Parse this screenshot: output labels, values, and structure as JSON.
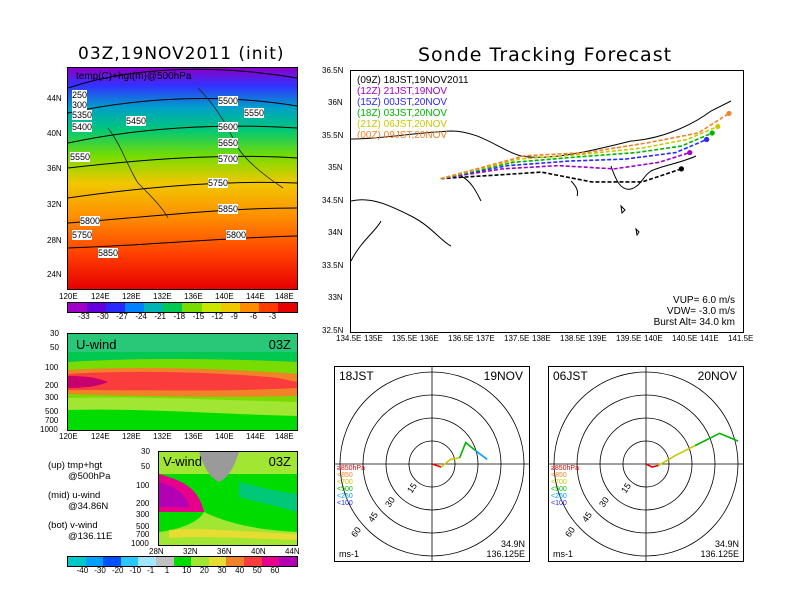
{
  "left": {
    "title": "03Z,19NOV2011 (init)",
    "map_label": "temp(C)+hgt(m)@500hPa",
    "contours": [
      "5500",
      "5450",
      "5550",
      "5600",
      "5650",
      "5700",
      "5750",
      "5800",
      "5850",
      "5750",
      "5800",
      "5850",
      "5350",
      "5400",
      "5550",
      "5300",
      "250",
      "300",
      "5250"
    ],
    "lat_ticks": [
      "44N",
      "40N",
      "36N",
      "32N",
      "28N",
      "24N"
    ],
    "lon_ticks": [
      "120E",
      "124E",
      "128E",
      "132E",
      "136E",
      "140E",
      "144E",
      "148E"
    ],
    "temp_cbar_labels": [
      "-33",
      "-30",
      "-27",
      "-24",
      "-21",
      "-18",
      "-15",
      "-12",
      "-9",
      "-6",
      "-3"
    ],
    "temp_cbar_colors": [
      "#a000c8",
      "#6400dc",
      "#2828ff",
      "#0082ff",
      "#00b4b4",
      "#00c850",
      "#78dc00",
      "#c8e600",
      "#f0c800",
      "#ff8c00",
      "#ff3c00",
      "#e60000"
    ],
    "uwind_label": "U-wind",
    "uwind_time": "03Z",
    "uwind_pticks": [
      "30",
      "50",
      "100",
      "200",
      "300",
      "500",
      "700",
      "1000"
    ],
    "uwind_lon_ticks": [
      "120E",
      "124E",
      "128E",
      "132E",
      "136E",
      "140E",
      "144E",
      "148E"
    ],
    "vwind_label": "V-wind",
    "vwind_time": "03Z",
    "vwind_pticks": [
      "30",
      "50",
      "100",
      "200",
      "300",
      "500",
      "700",
      "1000"
    ],
    "vwind_lat_ticks": [
      "28N",
      "32N",
      "36N",
      "40N",
      "44N"
    ],
    "wind_cbar_labels": [
      "-40",
      "-30",
      "-20",
      "-10",
      "-1",
      "1",
      "10",
      "20",
      "30",
      "40",
      "50",
      "60"
    ],
    "wind_cbar_colors": [
      "#00c8c8",
      "#00a0ff",
      "#0050ff",
      "#28c8ff",
      "#a0e6ff",
      "#c0c0c0",
      "#00dc00",
      "#a0e632",
      "#e6dc32",
      "#f08228",
      "#fa3c3c",
      "#e6008c",
      "#b400b4"
    ],
    "legend_lines": [
      {
        "a": "(up) tmp+hgt",
        "b": "@500hPa"
      },
      {
        "a": "(mid) u-wind",
        "b": "@34.86N"
      },
      {
        "a": "(bot) v-wind",
        "b": "@136.11E"
      }
    ]
  },
  "right": {
    "title": "Sonde Tracking Forecast",
    "lat_ticks": [
      "36.5N",
      "36N",
      "35.5N",
      "35N",
      "34.5N",
      "34N",
      "33.5N",
      "33N",
      "32.5N"
    ],
    "lon_ticks": [
      "134.5E",
      "135E",
      "135.5E",
      "136E",
      "136.5E",
      "137E",
      "137.5E",
      "138E",
      "138.5E",
      "139E",
      "139.5E",
      "140E",
      "140.5E",
      "141E",
      "141.5E"
    ],
    "legend": [
      {
        "label": "(09Z)  18JST,19NOV2011",
        "color": "#000000"
      },
      {
        "label": "(12Z)  21JST,19NOV",
        "color": "#a000c8"
      },
      {
        "label": "(15Z)  00JST,20NOV",
        "color": "#2828ff"
      },
      {
        "label": "(18Z)  03JST,20NOV",
        "color": "#00b400"
      },
      {
        "label": "(21Z)  06JST,20NOV",
        "color": "#c8c800"
      },
      {
        "label": "(00Z)  09JST,20NOV",
        "color": "#f08228"
      }
    ],
    "params": [
      "VUP=  6.0 m/s",
      "VDW=  -3.0 m/s",
      "Burst Alt=  34.0 km"
    ]
  },
  "hodo_left": {
    "time": "18JST",
    "date": "19NOV",
    "rings": [
      "15",
      "30",
      "45",
      "60"
    ],
    "levels": [
      {
        "label": "≥850hPa",
        "color": "#e60000"
      },
      {
        "label": "<850",
        "color": "#f08228"
      },
      {
        "label": "<700",
        "color": "#c8c800"
      },
      {
        "label": "<500",
        "color": "#00b400"
      },
      {
        "label": "<250",
        "color": "#00a0ff"
      },
      {
        "label": "<100",
        "color": "#2828ff"
      }
    ],
    "unit": "ms-1",
    "loc1": "34.9N",
    "loc2": "136.125E"
  },
  "hodo_right": {
    "time": "06JST",
    "date": "20NOV",
    "rings": [
      "15",
      "30",
      "45",
      "60"
    ],
    "levels": [
      {
        "label": "≥850hPa",
        "color": "#e60000"
      },
      {
        "label": "<850",
        "color": "#f08228"
      },
      {
        "label": "<700",
        "color": "#c8c800"
      },
      {
        "label": "<500",
        "color": "#00b400"
      },
      {
        "label": "<250",
        "color": "#00a0ff"
      },
      {
        "label": "<100",
        "color": "#2828ff"
      }
    ],
    "unit": "ms-1",
    "loc1": "34.9N",
    "loc2": "136.125E"
  },
  "chart_data": [
    {
      "type": "heatmap",
      "title": "03Z,19NOV2011 (init)",
      "subtitle": "temp(C)+hgt(m)@500hPa",
      "x_ticks": [
        "120E",
        "124E",
        "128E",
        "132E",
        "136E",
        "140E",
        "144E",
        "148E"
      ],
      "y_ticks": [
        "24N",
        "28N",
        "32N",
        "36N",
        "40N",
        "44N"
      ],
      "colorbar": [
        -33,
        -30,
        -27,
        -24,
        -21,
        -18,
        -15,
        -12,
        -9,
        -6,
        -3
      ],
      "height_contours_m": [
        5300,
        5350,
        5400,
        5450,
        5500,
        5550,
        5600,
        5650,
        5700,
        5750,
        5800,
        5850
      ]
    },
    {
      "type": "heatmap",
      "title": "U-wind",
      "annotation": "03Z",
      "y_ticks_hPa": [
        30,
        50,
        100,
        200,
        300,
        500,
        700,
        1000
      ],
      "x_ticks": [
        "120E",
        "124E",
        "128E",
        "132E",
        "136E",
        "140E",
        "144E",
        "148E"
      ]
    },
    {
      "type": "heatmap",
      "title": "V-wind",
      "annotation": "03Z",
      "y_ticks_hPa": [
        30,
        50,
        100,
        200,
        300,
        500,
        700,
        1000
      ],
      "x_ticks": [
        "28N",
        "32N",
        "36N",
        "40N",
        "44N"
      ],
      "colorbar": [
        -40,
        -30,
        -20,
        -10,
        -1,
        1,
        10,
        20,
        30,
        40,
        50,
        60
      ]
    },
    {
      "type": "line",
      "title": "Sonde Tracking Forecast",
      "xlim": [
        134.5,
        141.5
      ],
      "ylim": [
        32.5,
        36.5
      ],
      "series": [
        {
          "name": "(09Z)  18JST,19NOV2011",
          "x": [
            136.1,
            137.0,
            137.9,
            138.8,
            139.7,
            140.4
          ],
          "y": [
            34.85,
            34.9,
            34.95,
            34.8,
            34.8,
            35.0
          ]
        },
        {
          "name": "(12Z)  21JST,19NOV",
          "x": [
            136.1,
            137.2,
            138.2,
            139.2,
            140.0,
            140.55
          ],
          "y": [
            34.85,
            35.0,
            35.05,
            35.0,
            35.1,
            35.25
          ]
        },
        {
          "name": "(15Z)  00JST,20NOV",
          "x": [
            136.1,
            137.3,
            138.4,
            139.4,
            140.3,
            140.85
          ],
          "y": [
            34.85,
            35.05,
            35.12,
            35.15,
            35.25,
            35.45
          ]
        },
        {
          "name": "(18Z)  03JST,20NOV",
          "x": [
            136.1,
            137.4,
            138.5,
            139.6,
            140.4,
            140.95
          ],
          "y": [
            34.85,
            35.1,
            35.18,
            35.25,
            35.35,
            35.55
          ]
        },
        {
          "name": "(21Z)  06JST,20NOV",
          "x": [
            136.1,
            137.5,
            138.6,
            139.7,
            140.5,
            141.05
          ],
          "y": [
            34.85,
            35.15,
            35.22,
            35.32,
            35.45,
            35.65
          ]
        },
        {
          "name": "(00Z)  09JST,20NOV",
          "x": [
            136.1,
            137.6,
            138.7,
            139.8,
            140.7,
            141.25
          ],
          "y": [
            34.85,
            35.2,
            35.25,
            35.4,
            35.55,
            35.85
          ]
        }
      ]
    },
    {
      "type": "scatter",
      "title": "18JST 19NOV",
      "ring_labels": [
        15,
        30,
        45,
        60
      ],
      "series": [
        {
          "name": "≥850hPa",
          "x": [
            0,
            3,
            6
          ],
          "y": [
            0,
            -1,
            -2
          ]
        },
        {
          "name": "<700",
          "x": [
            6,
            12,
            18
          ],
          "y": [
            -2,
            3,
            4
          ]
        },
        {
          "name": "<500",
          "x": [
            18,
            22,
            28
          ],
          "y": [
            4,
            14,
            9
          ]
        },
        {
          "name": "<250",
          "x": [
            28,
            32,
            36
          ],
          "y": [
            9,
            6,
            3
          ]
        }
      ]
    },
    {
      "type": "scatter",
      "title": "06JST 20NOV",
      "ring_labels": [
        15,
        30,
        45,
        60
      ],
      "series": [
        {
          "name": "≥850hPa",
          "x": [
            0,
            4,
            8
          ],
          "y": [
            0,
            -2,
            -1
          ]
        },
        {
          "name": "<700",
          "x": [
            8,
            20,
            32
          ],
          "y": [
            -1,
            6,
            12
          ]
        },
        {
          "name": "<500",
          "x": [
            32,
            48,
            60
          ],
          "y": [
            12,
            20,
            15
          ]
        }
      ]
    }
  ]
}
